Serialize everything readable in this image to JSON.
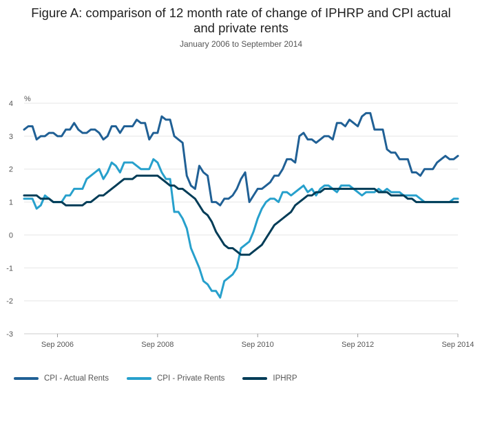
{
  "chart_data": {
    "type": "line",
    "title_line1": "Figure A: comparison of 12 month rate of change of IPHRP and CPI actual",
    "title_line2": "and private rents",
    "subtitle": "January 2006 to September 2014",
    "ylabel": "%",
    "ylim": [
      -3,
      4
    ],
    "yticks": [
      4,
      3,
      2,
      1,
      0,
      -1,
      -2,
      -3
    ],
    "xlim": [
      "2006-01",
      "2014-09"
    ],
    "xticks": [
      {
        "label": "Sep 2006",
        "date": "2006-09"
      },
      {
        "label": "Sep 2008",
        "date": "2008-09"
      },
      {
        "label": "Sep 2010",
        "date": "2010-09"
      },
      {
        "label": "Sep 2012",
        "date": "2012-09"
      },
      {
        "label": "Sep 2014",
        "date": "2014-09"
      }
    ],
    "grid": true,
    "legend_position": "bottom-left",
    "series": [
      {
        "name": "CPI - Actual Rents",
        "color": "#206095",
        "values": [
          3.2,
          3.3,
          3.3,
          2.9,
          3.0,
          3.0,
          3.1,
          3.1,
          3.0,
          3.0,
          3.2,
          3.2,
          3.4,
          3.2,
          3.1,
          3.1,
          3.2,
          3.2,
          3.1,
          2.9,
          3.0,
          3.3,
          3.3,
          3.1,
          3.3,
          3.3,
          3.3,
          3.5,
          3.4,
          3.4,
          2.9,
          3.1,
          3.1,
          3.6,
          3.5,
          3.5,
          3.0,
          2.9,
          2.8,
          1.8,
          1.5,
          1.4,
          2.1,
          1.9,
          1.8,
          1.0,
          1.0,
          0.9,
          1.1,
          1.1,
          1.2,
          1.4,
          1.7,
          1.9,
          1.0,
          1.2,
          1.4,
          1.4,
          1.5,
          1.6,
          1.8,
          1.8,
          2.0,
          2.3,
          2.3,
          2.2,
          3.0,
          3.1,
          2.9,
          2.9,
          2.8,
          2.9,
          3.0,
          3.0,
          2.9,
          3.4,
          3.4,
          3.3,
          3.5,
          3.4,
          3.3,
          3.6,
          3.7,
          3.7,
          3.2,
          3.2,
          3.2,
          2.6,
          2.5,
          2.5,
          2.3,
          2.3,
          2.3,
          1.9,
          1.9,
          1.8,
          2.0,
          2.0,
          2.0,
          2.2,
          2.3,
          2.4,
          2.3,
          2.3,
          2.4
        ]
      },
      {
        "name": "CPI - Private Rents",
        "color": "#27a0cc",
        "values": [
          1.1,
          1.1,
          1.1,
          0.8,
          0.9,
          1.2,
          1.1,
          1.0,
          1.0,
          1.0,
          1.2,
          1.2,
          1.4,
          1.4,
          1.4,
          1.7,
          1.8,
          1.9,
          2.0,
          1.7,
          1.9,
          2.2,
          2.1,
          1.9,
          2.2,
          2.2,
          2.2,
          2.1,
          2.0,
          2.0,
          2.0,
          2.3,
          2.2,
          1.9,
          1.7,
          1.7,
          0.7,
          0.7,
          0.5,
          0.2,
          -0.4,
          -0.7,
          -1.0,
          -1.4,
          -1.5,
          -1.7,
          -1.7,
          -1.9,
          -1.4,
          -1.3,
          -1.2,
          -1.0,
          -0.4,
          -0.3,
          -0.2,
          0.1,
          0.5,
          0.8,
          1.0,
          1.1,
          1.1,
          1.0,
          1.3,
          1.3,
          1.2,
          1.3,
          1.4,
          1.5,
          1.3,
          1.4,
          1.2,
          1.4,
          1.5,
          1.5,
          1.4,
          1.3,
          1.5,
          1.5,
          1.5,
          1.4,
          1.3,
          1.2,
          1.3,
          1.3,
          1.3,
          1.4,
          1.3,
          1.4,
          1.3,
          1.3,
          1.3,
          1.2,
          1.2,
          1.2,
          1.2,
          1.1,
          1.0,
          1.0,
          1.0,
          1.0,
          1.0,
          1.0,
          1.0,
          1.1,
          1.1
        ]
      },
      {
        "name": "IPHRP",
        "color": "#003c57",
        "values": [
          1.2,
          1.2,
          1.2,
          1.2,
          1.1,
          1.1,
          1.1,
          1.0,
          1.0,
          1.0,
          0.9,
          0.9,
          0.9,
          0.9,
          0.9,
          1.0,
          1.0,
          1.1,
          1.2,
          1.2,
          1.3,
          1.4,
          1.5,
          1.6,
          1.7,
          1.7,
          1.7,
          1.8,
          1.8,
          1.8,
          1.8,
          1.8,
          1.8,
          1.7,
          1.6,
          1.5,
          1.5,
          1.4,
          1.4,
          1.3,
          1.2,
          1.1,
          0.9,
          0.7,
          0.6,
          0.4,
          0.1,
          -0.1,
          -0.3,
          -0.4,
          -0.4,
          -0.5,
          -0.6,
          -0.6,
          -0.6,
          -0.5,
          -0.4,
          -0.3,
          -0.1,
          0.1,
          0.3,
          0.4,
          0.5,
          0.6,
          0.7,
          0.9,
          1.0,
          1.1,
          1.2,
          1.2,
          1.3,
          1.3,
          1.4,
          1.4,
          1.4,
          1.4,
          1.4,
          1.4,
          1.4,
          1.4,
          1.4,
          1.4,
          1.4,
          1.4,
          1.4,
          1.3,
          1.3,
          1.3,
          1.2,
          1.2,
          1.2,
          1.2,
          1.1,
          1.1,
          1.0,
          1.0,
          1.0,
          1.0,
          1.0,
          1.0,
          1.0,
          1.0,
          1.0,
          1.0,
          1.0
        ]
      }
    ]
  }
}
